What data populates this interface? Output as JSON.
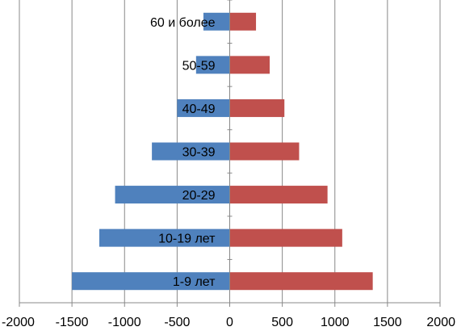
{
  "chart_data": {
    "type": "bar",
    "orientation": "horizontal",
    "stacked": "diverging",
    "title": "",
    "xlabel": "",
    "ylabel": "",
    "xlim": [
      -2000,
      2000
    ],
    "xticks": [
      -2000,
      -1500,
      -1000,
      -500,
      0,
      500,
      1000,
      1500,
      2000
    ],
    "grid": "vertical",
    "legend": "none",
    "categories": [
      "60 и более",
      "50-59",
      "40-49",
      "30-39",
      "20-29",
      "10-19 лет",
      "1-9 лет"
    ],
    "series": [
      {
        "color": "#4F81BD",
        "values": [
          -250,
          -320,
          -500,
          -740,
          -1090,
          -1240,
          -1500
        ]
      },
      {
        "color": "#C0504D",
        "values": [
          250,
          380,
          520,
          660,
          930,
          1070,
          1360
        ]
      }
    ]
  }
}
